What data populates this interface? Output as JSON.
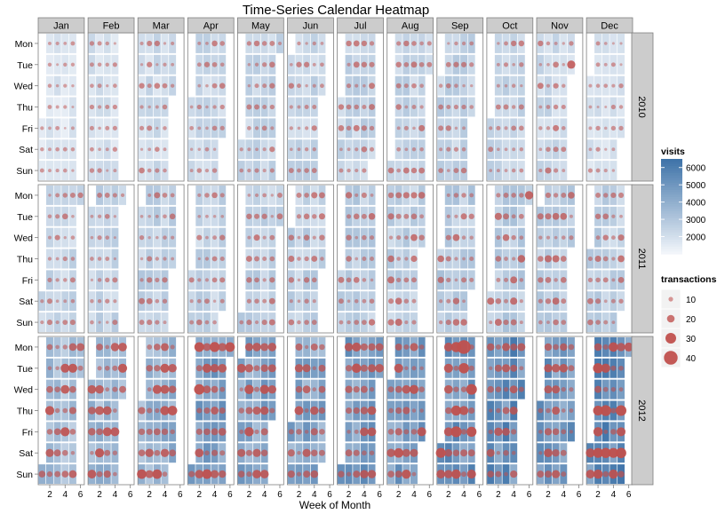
{
  "chart_data": {
    "type": "heatmap",
    "title": "Time-Series Calendar Heatmap",
    "xlabel": "Week of Month",
    "ylabel": "",
    "months": [
      "Jan",
      "Feb",
      "Mar",
      "Apr",
      "May",
      "Jun",
      "Jul",
      "Aug",
      "Sep",
      "Oct",
      "Nov",
      "Dec"
    ],
    "years": [
      "2010",
      "2011",
      "2012"
    ],
    "weekdays": [
      "Mon",
      "Tue",
      "Wed",
      "Thu",
      "Fri",
      "Sat",
      "Sun"
    ],
    "x_ticks": [
      2,
      4,
      6
    ],
    "x_range": [
      0.5,
      6.5
    ],
    "fill_legend": {
      "title": "visits",
      "range": [
        1000,
        6500
      ],
      "breaks": [
        6000,
        5000,
        4000,
        3000,
        2000
      ],
      "low_color": "#f4f7fb",
      "high_color": "#3d72a8"
    },
    "size_legend": {
      "title": "transactions",
      "breaks": [
        10,
        20,
        30,
        40
      ],
      "point_color": "#c0504d"
    },
    "series": [
      {
        "name": "2010",
        "visits_by_month": [
          1700,
          1900,
          2100,
          2200,
          2300,
          2300,
          2400,
          2400,
          2400,
          2300,
          2200,
          1800
        ],
        "transactions_by_month": [
          6,
          7,
          9,
          9,
          9,
          9,
          10,
          10,
          9,
          9,
          10,
          7
        ]
      },
      {
        "name": "2011",
        "visits_by_month": [
          2300,
          2400,
          2500,
          2400,
          2500,
          2500,
          2600,
          2500,
          2700,
          2700,
          2600,
          2500
        ],
        "transactions_by_month": [
          9,
          8,
          10,
          9,
          10,
          10,
          11,
          12,
          12,
          13,
          12,
          12
        ]
      },
      {
        "name": "2012",
        "visits_by_month": [
          3300,
          3500,
          3700,
          4400,
          4200,
          4200,
          4600,
          4600,
          4900,
          5100,
          4800,
          5200
        ],
        "transactions_by_month": [
          16,
          16,
          17,
          19,
          17,
          16,
          17,
          17,
          20,
          16,
          15,
          20
        ]
      }
    ],
    "annotations": [
      {
        "year": "2012",
        "month": "Sep",
        "day": "Mon",
        "week": 4,
        "transactions": 40
      },
      {
        "year": "2010",
        "month": "Nov",
        "day": "Tue",
        "week": 5,
        "transactions": 22
      },
      {
        "year": "2011",
        "month": "Oct",
        "day": "Mon",
        "week": 6,
        "transactions": 22
      }
    ],
    "grid": true,
    "legend_position": "right"
  }
}
